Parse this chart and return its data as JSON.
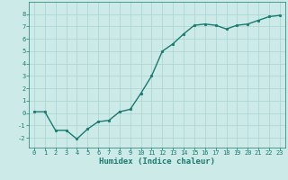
{
  "x": [
    0,
    1,
    2,
    3,
    4,
    5,
    6,
    7,
    8,
    9,
    10,
    11,
    12,
    13,
    14,
    15,
    16,
    17,
    18,
    19,
    20,
    21,
    22,
    23
  ],
  "y": [
    0.1,
    0.1,
    -1.4,
    -1.4,
    -2.1,
    -1.3,
    -0.7,
    -0.6,
    0.1,
    0.3,
    1.6,
    3.0,
    5.0,
    5.6,
    6.4,
    7.1,
    7.2,
    7.1,
    6.8,
    7.1,
    7.2,
    7.5,
    7.8,
    7.9
  ],
  "line_color": "#1a7a6e",
  "marker": "o",
  "marker_size": 1.8,
  "bg_color": "#cceae8",
  "grid_color": "#aad4d0",
  "xlabel": "Humidex (Indice chaleur)",
  "xlim": [
    -0.5,
    23.5
  ],
  "ylim": [
    -2.8,
    9.0
  ],
  "yticks": [
    -2,
    -1,
    0,
    1,
    2,
    3,
    4,
    5,
    6,
    7,
    8
  ],
  "xticks": [
    0,
    1,
    2,
    3,
    4,
    5,
    6,
    7,
    8,
    9,
    10,
    11,
    12,
    13,
    14,
    15,
    16,
    17,
    18,
    19,
    20,
    21,
    22,
    23
  ],
  "tick_color": "#1a7a6e",
  "label_color": "#1a7a6e",
  "xlabel_fontsize": 6.5,
  "tick_fontsize": 5.0,
  "linewidth": 1.0
}
